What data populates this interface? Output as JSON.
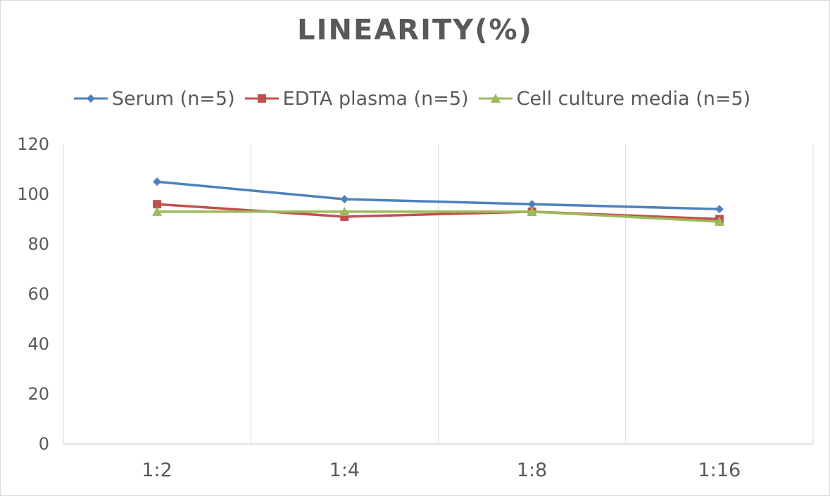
{
  "chart_data": {
    "type": "line",
    "title": "LINEARITY(%)",
    "categories": [
      "1:2",
      "1:4",
      "1:8",
      "1:16"
    ],
    "series": [
      {
        "name": "Serum (n=5)",
        "values": [
          105,
          98,
          96,
          94
        ],
        "color": "#4f81bd",
        "marker": "diamond"
      },
      {
        "name": "EDTA plasma (n=5)",
        "values": [
          96,
          91,
          93,
          90
        ],
        "color": "#c0504d",
        "marker": "square"
      },
      {
        "name": "Cell culture media (n=5)",
        "values": [
          93,
          93,
          93,
          89
        ],
        "color": "#9bbb59",
        "marker": "triangle"
      }
    ],
    "ylim": [
      0,
      120
    ],
    "yticks": [
      0,
      20,
      40,
      60,
      80,
      100,
      120
    ],
    "grid": "vertical",
    "legend_position": "top"
  }
}
